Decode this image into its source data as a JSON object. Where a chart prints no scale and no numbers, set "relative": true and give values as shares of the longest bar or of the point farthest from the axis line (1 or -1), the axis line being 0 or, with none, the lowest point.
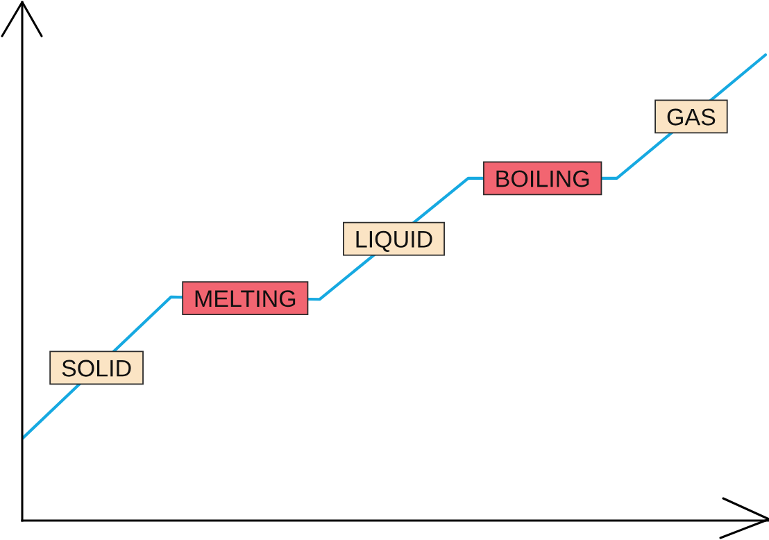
{
  "chart_data": {
    "type": "line",
    "relative": true,
    "line_style": "solid",
    "categories": [
      null,
      null,
      null,
      null,
      null,
      null
    ],
    "series": [
      {
        "color": "#16a9e1",
        "values": [
          0.176,
          0.48,
          0.475,
          0.735,
          0.735,
          1.0
        ]
      }
    ],
    "annotations": [
      "SOLID",
      "MELTING",
      "LIQUID",
      "BOILING",
      "GAS"
    ]
  }
}
